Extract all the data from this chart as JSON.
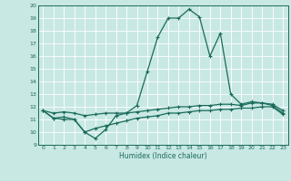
{
  "xlabel": "Humidex (Indice chaleur)",
  "x": [
    0,
    1,
    2,
    3,
    4,
    5,
    6,
    7,
    8,
    9,
    10,
    11,
    12,
    13,
    14,
    15,
    16,
    17,
    18,
    19,
    20,
    21,
    22,
    23
  ],
  "curve_main": [
    11.7,
    11.1,
    11.2,
    11.0,
    10.0,
    9.5,
    10.2,
    11.3,
    11.5,
    12.1,
    14.8,
    17.5,
    19.0,
    19.0,
    19.7,
    19.1,
    16.0,
    17.8,
    13.0,
    12.2,
    12.4,
    12.3,
    12.1,
    11.5
  ],
  "curve_mid": [
    11.7,
    11.5,
    11.6,
    11.5,
    11.3,
    11.4,
    11.5,
    11.5,
    11.5,
    11.6,
    11.7,
    11.8,
    11.9,
    12.0,
    12.0,
    12.1,
    12.1,
    12.2,
    12.2,
    12.1,
    12.3,
    12.3,
    12.2,
    11.7
  ],
  "curve_bot": [
    11.7,
    11.1,
    11.0,
    11.0,
    10.0,
    10.3,
    10.5,
    10.7,
    10.9,
    11.1,
    11.2,
    11.3,
    11.5,
    11.5,
    11.6,
    11.7,
    11.7,
    11.8,
    11.8,
    11.9,
    11.9,
    12.0,
    12.0,
    11.4
  ],
  "color": "#1a6b5a",
  "bg_color": "#c8e8e4",
  "grid_color": "#b0d8d4",
  "xlim": [
    -0.5,
    23.5
  ],
  "ylim": [
    9,
    20
  ],
  "yticks": [
    9,
    10,
    11,
    12,
    13,
    14,
    15,
    16,
    17,
    18,
    19,
    20
  ],
  "xticks": [
    0,
    1,
    2,
    3,
    4,
    5,
    6,
    7,
    8,
    9,
    10,
    11,
    12,
    13,
    14,
    15,
    16,
    17,
    18,
    19,
    20,
    21,
    22,
    23
  ]
}
